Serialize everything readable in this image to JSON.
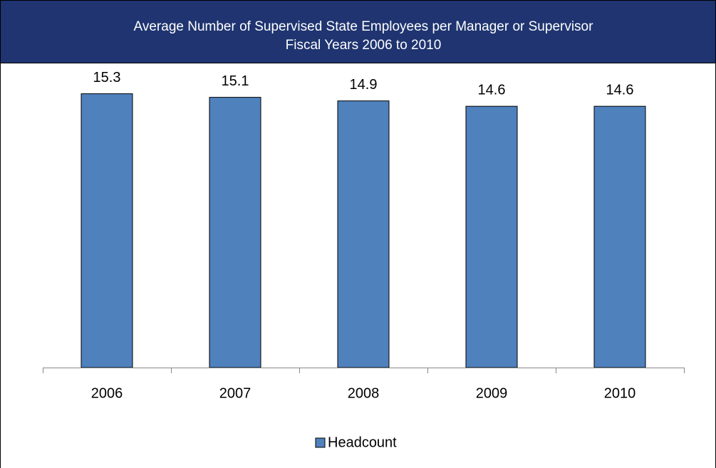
{
  "chart_data": {
    "type": "bar",
    "title": "Average Number of Supervised State Employees per Manager or Supervisor",
    "subtitle": "Fiscal Years 2006 to 2010",
    "categories": [
      "2006",
      "2007",
      "2008",
      "2009",
      "2010"
    ],
    "series": [
      {
        "name": "Headcount",
        "color": "#4f81bd",
        "values": [
          15.3,
          15.1,
          14.9,
          14.6,
          14.6
        ]
      }
    ],
    "ylim": [
      0,
      16
    ]
  }
}
